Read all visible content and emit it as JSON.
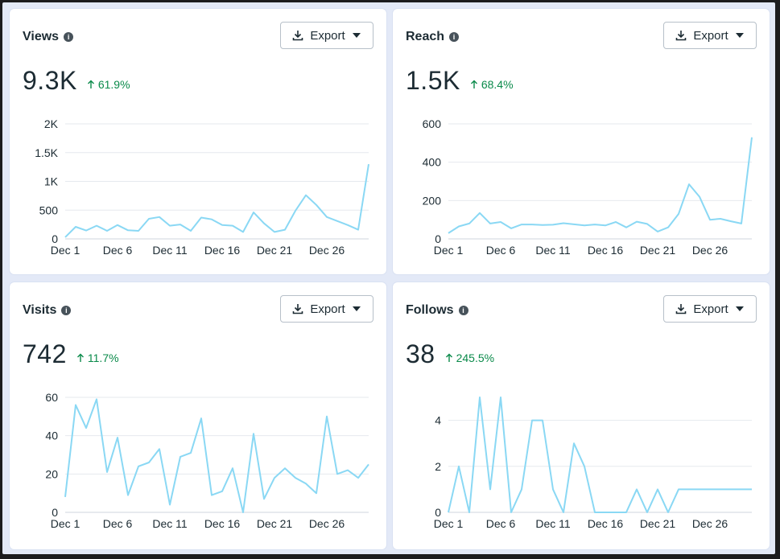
{
  "cards": [
    {
      "title": "Views",
      "export_label": "Export",
      "value": "9.3K",
      "change": "61.9%",
      "chart_data": {
        "type": "line",
        "x_ticks": [
          "Dec 1",
          "Dec 6",
          "Dec 11",
          "Dec 16",
          "Dec 21",
          "Dec 26"
        ],
        "y_ticks": [
          "0",
          "500",
          "1K",
          "1.5K",
          "2K"
        ],
        "ylim": [
          0,
          2000
        ],
        "grid": true,
        "color": "#8ad8f4",
        "values": [
          30,
          210,
          145,
          230,
          140,
          240,
          150,
          140,
          350,
          380,
          230,
          250,
          140,
          370,
          340,
          240,
          230,
          120,
          460,
          270,
          120,
          160,
          490,
          760,
          590,
          380,
          310,
          240,
          160,
          1300
        ]
      }
    },
    {
      "title": "Reach",
      "export_label": "Export",
      "value": "1.5K",
      "change": "68.4%",
      "chart_data": {
        "type": "line",
        "x_ticks": [
          "Dec 1",
          "Dec 6",
          "Dec 11",
          "Dec 16",
          "Dec 21",
          "Dec 26"
        ],
        "y_ticks": [
          "0",
          "200",
          "400",
          "600"
        ],
        "ylim": [
          0,
          600
        ],
        "grid": true,
        "color": "#8ad8f4",
        "values": [
          30,
          65,
          80,
          135,
          80,
          88,
          55,
          75,
          75,
          72,
          74,
          82,
          76,
          70,
          75,
          70,
          88,
          60,
          90,
          78,
          38,
          60,
          130,
          285,
          220,
          100,
          105,
          92,
          80,
          530
        ]
      }
    },
    {
      "title": "Visits",
      "export_label": "Export",
      "value": "742",
      "change": "11.7%",
      "chart_data": {
        "type": "line",
        "x_ticks": [
          "Dec 1",
          "Dec 6",
          "Dec 11",
          "Dec 16",
          "Dec 21",
          "Dec 26"
        ],
        "y_ticks": [
          "0",
          "20",
          "40",
          "60"
        ],
        "ylim": [
          0,
          60
        ],
        "grid": true,
        "color": "#8ad8f4",
        "values": [
          8,
          56,
          44,
          59,
          21,
          39,
          9,
          24,
          26,
          33,
          4,
          29,
          31,
          49,
          9,
          11,
          23,
          0,
          41,
          7,
          18,
          23,
          18,
          15,
          10,
          50,
          20,
          22,
          18,
          25
        ]
      }
    },
    {
      "title": "Follows",
      "export_label": "Export",
      "value": "38",
      "change": "245.5%",
      "chart_data": {
        "type": "line",
        "x_ticks": [
          "Dec 1",
          "Dec 6",
          "Dec 11",
          "Dec 16",
          "Dec 21",
          "Dec 26"
        ],
        "y_ticks": [
          "0",
          "2",
          "4"
        ],
        "ylim": [
          0,
          5
        ],
        "grid": true,
        "color": "#8ad8f4",
        "values": [
          0,
          2,
          0,
          5,
          1,
          5,
          0,
          1,
          4,
          4,
          1,
          0,
          3,
          2,
          0,
          0,
          0,
          0,
          1,
          0,
          1,
          0,
          1,
          1,
          1,
          1,
          1,
          1,
          1,
          1
        ]
      }
    }
  ]
}
